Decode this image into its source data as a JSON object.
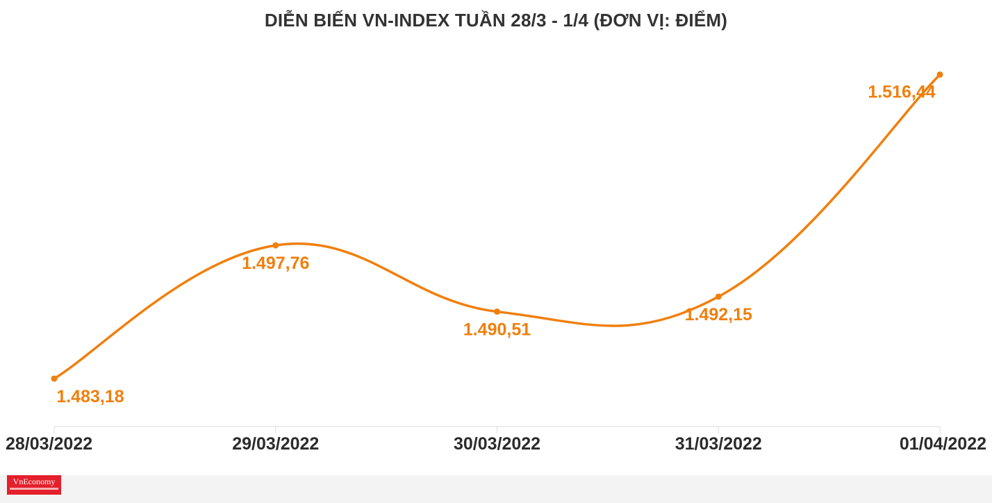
{
  "chart_data": {
    "type": "line",
    "title": "DIỄN BIẾN VN-INDEX TUẦN 28/3 - 1/4 (ĐƠN VỊ: ĐIỂM)",
    "categories": [
      "28/03/2022",
      "29/03/2022",
      "30/03/2022",
      "31/03/2022",
      "01/04/2022"
    ],
    "series": [
      {
        "values": [
          1483.18,
          1497.76,
          1490.51,
          1492.15,
          1516.44
        ],
        "labels": [
          "1.483,18",
          "1.497,76",
          "1.490,51",
          "1.492,15",
          "1.516,44"
        ]
      }
    ],
    "ylim": [
      1479,
      1517
    ],
    "grid": false,
    "legend": "none",
    "line_color": "#f07f0d",
    "label_color": "#f07f0d",
    "axis_color": "#dcdcdc",
    "tick_label_color": "#2b2b2b"
  },
  "footer": {
    "logo_text": "VnEconomy",
    "logo_color": "#e3202b"
  }
}
